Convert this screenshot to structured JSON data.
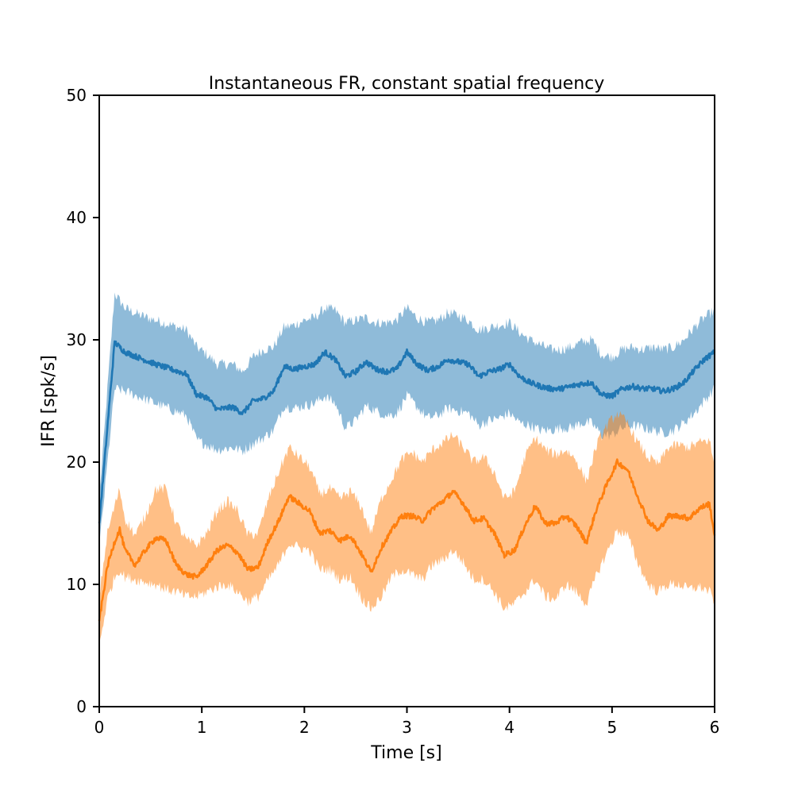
{
  "chart_data": {
    "type": "line",
    "title": "Instantaneous FR, constant spatial frequency",
    "xlabel": "Time [s]",
    "ylabel": "IFR [spk/s]",
    "xlim": [
      0,
      6
    ],
    "ylim": [
      0,
      50
    ],
    "xticks": [
      "0",
      "1",
      "2",
      "3",
      "4",
      "5",
      "6"
    ],
    "yticks": [
      "0",
      "10",
      "20",
      "30",
      "40",
      "50"
    ],
    "grid": false,
    "legend": "none",
    "series": [
      {
        "color": "#1f77b4",
        "band_color": "#1f77b4",
        "band_opacity": 0.5,
        "x": [
          0,
          0.15,
          0.25,
          0.4,
          0.55,
          0.7,
          0.85,
          0.95,
          1.05,
          1.15,
          1.3,
          1.4,
          1.5,
          1.6,
          1.7,
          1.8,
          1.9,
          2.0,
          2.1,
          2.2,
          2.3,
          2.4,
          2.5,
          2.6,
          2.7,
          2.8,
          2.9,
          3.0,
          3.1,
          3.2,
          3.3,
          3.4,
          3.5,
          3.6,
          3.7,
          3.8,
          3.9,
          4.0,
          4.1,
          4.2,
          4.3,
          4.4,
          4.5,
          4.6,
          4.7,
          4.8,
          4.9,
          5.0,
          5.1,
          5.2,
          5.3,
          5.4,
          5.5,
          5.6,
          5.7,
          5.8,
          5.9,
          6.0
        ],
        "y": [
          15,
          29.8,
          29.0,
          28.5,
          28.0,
          27.6,
          27.2,
          25.5,
          25.3,
          24.3,
          24.5,
          24.0,
          25.0,
          25.2,
          25.8,
          27.8,
          27.6,
          27.8,
          28.0,
          29.0,
          28.4,
          27.0,
          27.4,
          28.2,
          27.6,
          27.4,
          27.6,
          29.0,
          28.0,
          27.5,
          27.8,
          28.4,
          28.2,
          28.0,
          27.0,
          27.4,
          27.6,
          28.0,
          27.0,
          26.5,
          26.2,
          26.0,
          26.0,
          26.2,
          26.4,
          26.5,
          25.5,
          25.4,
          26.0,
          26.2,
          26.0,
          26.0,
          25.8,
          26.0,
          26.5,
          27.5,
          28.4,
          29.0
        ],
        "lower": [
          13,
          26.0,
          25.8,
          25.3,
          24.8,
          24.3,
          23.8,
          21.8,
          21.4,
          21.0,
          21.2,
          20.9,
          21.5,
          22.0,
          22.6,
          24.6,
          24.4,
          24.6,
          24.8,
          25.4,
          24.8,
          22.8,
          23.4,
          24.6,
          24.2,
          23.8,
          24.0,
          25.4,
          24.5,
          23.6,
          23.8,
          24.4,
          24.2,
          24.0,
          23.0,
          23.4,
          23.6,
          24.0,
          23.2,
          23.0,
          22.6,
          22.6,
          22.8,
          22.8,
          23.2,
          23.2,
          22.2,
          22.2,
          22.8,
          23.0,
          22.8,
          22.6,
          22.4,
          22.6,
          23.2,
          24.0,
          25.0,
          26.0
        ],
        "upper": [
          17,
          33.8,
          32.6,
          32.0,
          31.6,
          31.2,
          30.8,
          29.4,
          28.8,
          28.0,
          28.0,
          27.4,
          28.6,
          29.2,
          29.4,
          31.0,
          31.2,
          31.6,
          31.8,
          32.6,
          32.4,
          31.4,
          31.6,
          31.8,
          31.4,
          31.4,
          31.6,
          32.6,
          31.8,
          31.4,
          31.6,
          32.2,
          32.0,
          31.6,
          30.8,
          31.0,
          31.2,
          31.4,
          30.6,
          30.0,
          29.6,
          29.2,
          29.2,
          29.4,
          29.8,
          30.0,
          28.8,
          28.6,
          29.2,
          29.4,
          29.2,
          29.4,
          29.2,
          29.4,
          30.0,
          31.0,
          31.8,
          32.4
        ]
      },
      {
        "color": "#ff7f0e",
        "band_color": "#ff7f0e",
        "band_opacity": 0.5,
        "x": [
          0,
          0.08,
          0.15,
          0.2,
          0.25,
          0.35,
          0.45,
          0.55,
          0.65,
          0.75,
          0.85,
          0.95,
          1.05,
          1.15,
          1.25,
          1.35,
          1.45,
          1.55,
          1.65,
          1.75,
          1.85,
          1.95,
          2.05,
          2.15,
          2.25,
          2.35,
          2.45,
          2.55,
          2.65,
          2.75,
          2.85,
          2.95,
          3.05,
          3.15,
          3.25,
          3.35,
          3.45,
          3.55,
          3.65,
          3.75,
          3.85,
          3.95,
          4.05,
          4.15,
          4.25,
          4.35,
          4.45,
          4.55,
          4.65,
          4.75,
          4.85,
          4.95,
          5.05,
          5.15,
          5.25,
          5.35,
          5.45,
          5.55,
          5.65,
          5.75,
          5.85,
          5.95,
          6.0
        ],
        "y": [
          7,
          11.5,
          13.5,
          14.5,
          12.8,
          11.6,
          12.8,
          13.8,
          13.6,
          11.6,
          10.8,
          10.6,
          11.6,
          12.8,
          13.2,
          12.6,
          11.2,
          11.4,
          13.6,
          15.2,
          17.2,
          16.6,
          16.0,
          14.2,
          14.4,
          13.6,
          14.0,
          12.6,
          11.0,
          13.0,
          14.4,
          15.6,
          15.6,
          15.2,
          16.2,
          16.8,
          17.6,
          16.6,
          15.2,
          15.4,
          14.2,
          12.4,
          12.8,
          14.8,
          16.4,
          15.0,
          15.0,
          15.6,
          14.8,
          13.4,
          16.2,
          18.2,
          20.0,
          19.4,
          17.2,
          15.2,
          14.4,
          15.6,
          15.6,
          15.4,
          16.2,
          16.6,
          14.0
        ],
        "lower": [
          5,
          8.8,
          10.6,
          11.2,
          10.6,
          10.4,
          10.2,
          10.0,
          9.6,
          9.4,
          9.0,
          9.0,
          9.4,
          9.8,
          10.0,
          9.4,
          8.6,
          9.0,
          10.4,
          11.6,
          13.4,
          13.0,
          12.8,
          11.2,
          11.2,
          10.4,
          10.6,
          9.0,
          8.0,
          9.0,
          10.6,
          11.2,
          10.8,
          10.4,
          11.6,
          12.0,
          12.8,
          11.8,
          10.4,
          10.4,
          9.4,
          8.0,
          8.4,
          9.4,
          10.4,
          9.0,
          8.8,
          10.0,
          9.4,
          8.4,
          10.8,
          12.6,
          14.4,
          14.0,
          11.8,
          10.0,
          9.4,
          10.0,
          10.0,
          9.6,
          9.8,
          9.4,
          8.6
        ],
        "upper": [
          9,
          14.2,
          16.4,
          17.8,
          15.4,
          14.0,
          15.6,
          17.8,
          17.8,
          15.0,
          13.6,
          13.2,
          14.2,
          16.0,
          16.8,
          16.0,
          14.0,
          14.2,
          17.0,
          19.2,
          21.2,
          20.4,
          19.6,
          17.4,
          17.8,
          17.0,
          17.6,
          16.4,
          14.2,
          17.0,
          18.6,
          20.2,
          20.8,
          20.0,
          21.0,
          21.6,
          22.2,
          21.2,
          20.0,
          20.4,
          19.2,
          17.0,
          17.6,
          20.4,
          22.0,
          21.0,
          20.6,
          21.0,
          20.2,
          18.4,
          21.4,
          23.0,
          24.0,
          23.2,
          21.6,
          20.4,
          19.8,
          21.2,
          21.4,
          21.2,
          21.6,
          21.8,
          19.6
        ]
      }
    ]
  }
}
